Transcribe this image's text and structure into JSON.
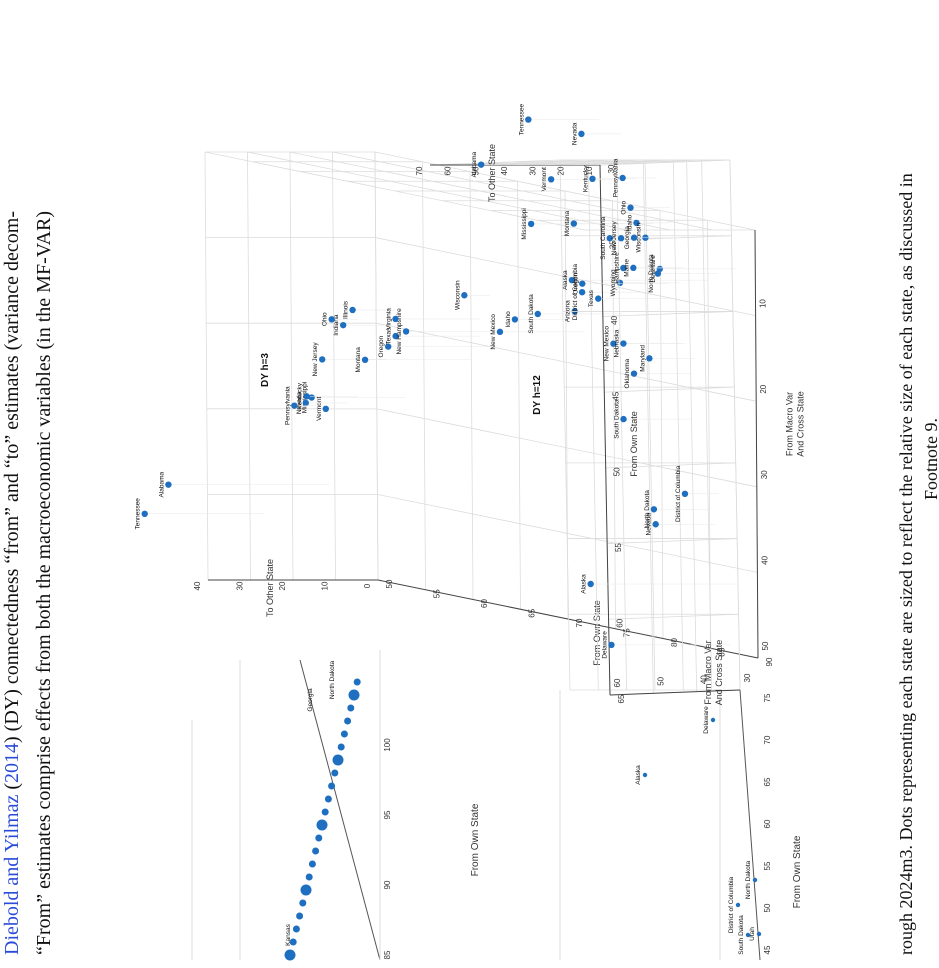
{
  "caption": {
    "line1_link": "Diebold and Yilmaz",
    "line1_link_year": "2014",
    "line1_rest": "(DY) connectedness “from” and “to” estimates (variance decom-",
    "line2": "“From” estimates comprise effects from both the macroeconomic variables (in the MF-VAR)",
    "bottom_line1": "rough 2024m3. Dots representing each state are sized to reflect the relative size of each state, as discussed in",
    "bottom_line2": "Footnote 9."
  },
  "colors": {
    "dot": "#1f6fc0",
    "grid": "#dcdcdc",
    "axis": "#444444",
    "link": "#2a4bd7"
  },
  "chart_data": [
    {
      "type": "scatter",
      "title": "DY h=3",
      "xlabel": "From Own State",
      "ylabel": "From Macro Var And Cross State",
      "zlabel": "To Other State",
      "xlim": [
        50,
        90
      ],
      "ylim": [
        0,
        50
      ],
      "zlim": [
        0,
        40
      ],
      "x_ticks": [
        "50",
        "55",
        "60",
        "65",
        "70",
        "75",
        "80",
        "85",
        "90"
      ],
      "y_ticks": [
        "10",
        "20",
        "30",
        "40",
        "50"
      ],
      "z_ticks": [
        "0",
        "10",
        "20",
        "30",
        "40"
      ],
      "points": [
        {
          "label": "Alaska",
          "own": 85,
          "macro": 7,
          "to": 32
        },
        {
          "label": "Alabama",
          "own": 45,
          "macro": 40,
          "to": 38
        },
        {
          "label": "Tennessee",
          "own": 38,
          "macro": 45,
          "to": 28
        },
        {
          "label": "Mississippi",
          "own": 53,
          "macro": 28,
          "to": 22
        },
        {
          "label": "Vermont",
          "own": 50,
          "macro": 30,
          "to": 12
        },
        {
          "label": "Nevada",
          "own": 47,
          "macro": 30,
          "to": 10
        },
        {
          "label": "Kentucky",
          "own": 48,
          "macro": 29,
          "to": 12
        },
        {
          "label": "Pennsylvania",
          "own": 44,
          "macro": 31,
          "to": 6
        },
        {
          "label": "New Jersey",
          "own": 51,
          "macro": 24,
          "to": 15
        },
        {
          "label": "Indiana",
          "own": 51,
          "macro": 20,
          "to": 10
        },
        {
          "label": "Ohio",
          "own": 48,
          "macro": 20,
          "to": 6
        },
        {
          "label": "Illinois",
          "own": 52,
          "macro": 18,
          "to": 10
        },
        {
          "label": "Montana",
          "own": 60,
          "macro": 22,
          "to": 25
        },
        {
          "label": "Oregon",
          "own": 62,
          "macro": 20,
          "to": 24
        },
        {
          "label": "Texas",
          "own": 61,
          "macro": 19,
          "to": 20
        },
        {
          "label": "New Hampshire",
          "own": 63,
          "macro": 18,
          "to": 22
        },
        {
          "label": "Virginia",
          "own": 61,
          "macro": 17,
          "to": 20
        },
        {
          "label": "Wisconsin",
          "own": 62,
          "macro": 14,
          "to": 6
        },
        {
          "label": "New Mexico",
          "own": 72,
          "macro": 16,
          "to": 20
        },
        {
          "label": "Idaho",
          "own": 70,
          "macro": 15,
          "to": 12
        },
        {
          "label": "South Dakota",
          "own": 76,
          "macro": 13,
          "to": 20
        },
        {
          "label": "Arizona",
          "own": 79,
          "macro": 12,
          "to": 18
        },
        {
          "label": "District of Columbia",
          "own": 78,
          "macro": 10,
          "to": 14
        },
        {
          "label": "Wyoming",
          "own": 82,
          "macro": 8,
          "to": 14
        },
        {
          "label": "North Dakota",
          "own": 86,
          "macro": 6,
          "to": 14
        },
        {
          "label": "Delaware",
          "own": 88,
          "macro": 5,
          "to": 18
        }
      ]
    },
    {
      "type": "scatter",
      "title": "DY h=12",
      "xlabel": "From Own State",
      "ylabel": "From Macro Var And Cross State",
      "zlabel": "To Other State",
      "xlim": [
        30,
        65
      ],
      "ylim": [
        30,
        60
      ],
      "zlim": [
        10,
        70
      ],
      "x_ticks": [
        "30",
        "35",
        "40",
        "45",
        "50",
        "55",
        "60",
        "65"
      ],
      "y_ticks": [
        "30",
        "40",
        "50",
        "60"
      ],
      "z_ticks": [
        "10",
        "20",
        "30",
        "40",
        "50",
        "60",
        "70"
      ],
      "points": [
        {
          "label": "Alaska",
          "own": 58,
          "macro": 30,
          "to": 62
        },
        {
          "label": "Delaware",
          "own": 62,
          "macro": 32,
          "to": 52
        },
        {
          "label": "Alabama",
          "own": 30,
          "macro": 58,
          "to": 55
        },
        {
          "label": "Mississippi",
          "own": 34,
          "macro": 50,
          "to": 50
        },
        {
          "label": "Tennessee",
          "own": 27,
          "macro": 60,
          "to": 35
        },
        {
          "label": "Vermont",
          "own": 31,
          "macro": 55,
          "to": 35
        },
        {
          "label": "Nevada",
          "own": 28,
          "macro": 55,
          "to": 24
        },
        {
          "label": "Kentucky",
          "own": 31,
          "macro": 52,
          "to": 25
        },
        {
          "label": "Pennsylvania",
          "own": 31,
          "macro": 47,
          "to": 22
        },
        {
          "label": "Montana",
          "own": 34,
          "macro": 48,
          "to": 38
        },
        {
          "label": "Oregon",
          "own": 38,
          "macro": 45,
          "to": 40
        },
        {
          "label": "Texas",
          "own": 39,
          "macro": 44,
          "to": 36
        },
        {
          "label": "South Carolina",
          "own": 35,
          "macro": 45,
          "to": 30
        },
        {
          "label": "New Jersey",
          "own": 35,
          "macro": 45,
          "to": 26
        },
        {
          "label": "Idaho",
          "own": 34,
          "macro": 44,
          "to": 22
        },
        {
          "label": "Ohio",
          "own": 33,
          "macro": 44,
          "to": 24
        },
        {
          "label": "Wisconsin",
          "own": 35,
          "macro": 42,
          "to": 22
        },
        {
          "label": "Georgia",
          "own": 35,
          "macro": 42,
          "to": 26
        },
        {
          "label": "Hampshire",
          "own": 37,
          "macro": 42,
          "to": 30
        },
        {
          "label": "Maine",
          "own": 37,
          "macro": 41,
          "to": 28
        },
        {
          "label": "New Mexico",
          "own": 42,
          "macro": 42,
          "to": 34
        },
        {
          "label": "Nebraska",
          "own": 42,
          "macro": 41,
          "to": 32
        },
        {
          "label": "Oklahoma",
          "own": 44,
          "macro": 40,
          "to": 30
        },
        {
          "label": "Maryland",
          "own": 43,
          "macro": 39,
          "to": 26
        },
        {
          "label": "South Dakota",
          "own": 47,
          "macro": 40,
          "to": 34
        },
        {
          "label": "North Dakota",
          "own": 53,
          "macro": 36,
          "to": 30
        },
        {
          "label": "Nevada ",
          "own": 54,
          "macro": 35,
          "to": 31
        },
        {
          "label": "District of Columbia",
          "own": 52,
          "macro": 34,
          "to": 22
        }
      ]
    }
  ],
  "partial_charts": {
    "upper": {
      "xlabel": "From Own State",
      "x_ticks": [
        "85",
        "90",
        "95",
        "100"
      ],
      "labels": [
        "Kansas",
        "Georgia",
        "North Dakota"
      ]
    },
    "lower": {
      "xlabel": "From Own State",
      "x_ticks": [
        "45",
        "50",
        "55",
        "60",
        "65",
        "70",
        "75"
      ],
      "labels": [
        "Alaska",
        "Delaware",
        "South Dakota",
        "Utah",
        "District of Columbia",
        "North Dakota"
      ]
    }
  }
}
